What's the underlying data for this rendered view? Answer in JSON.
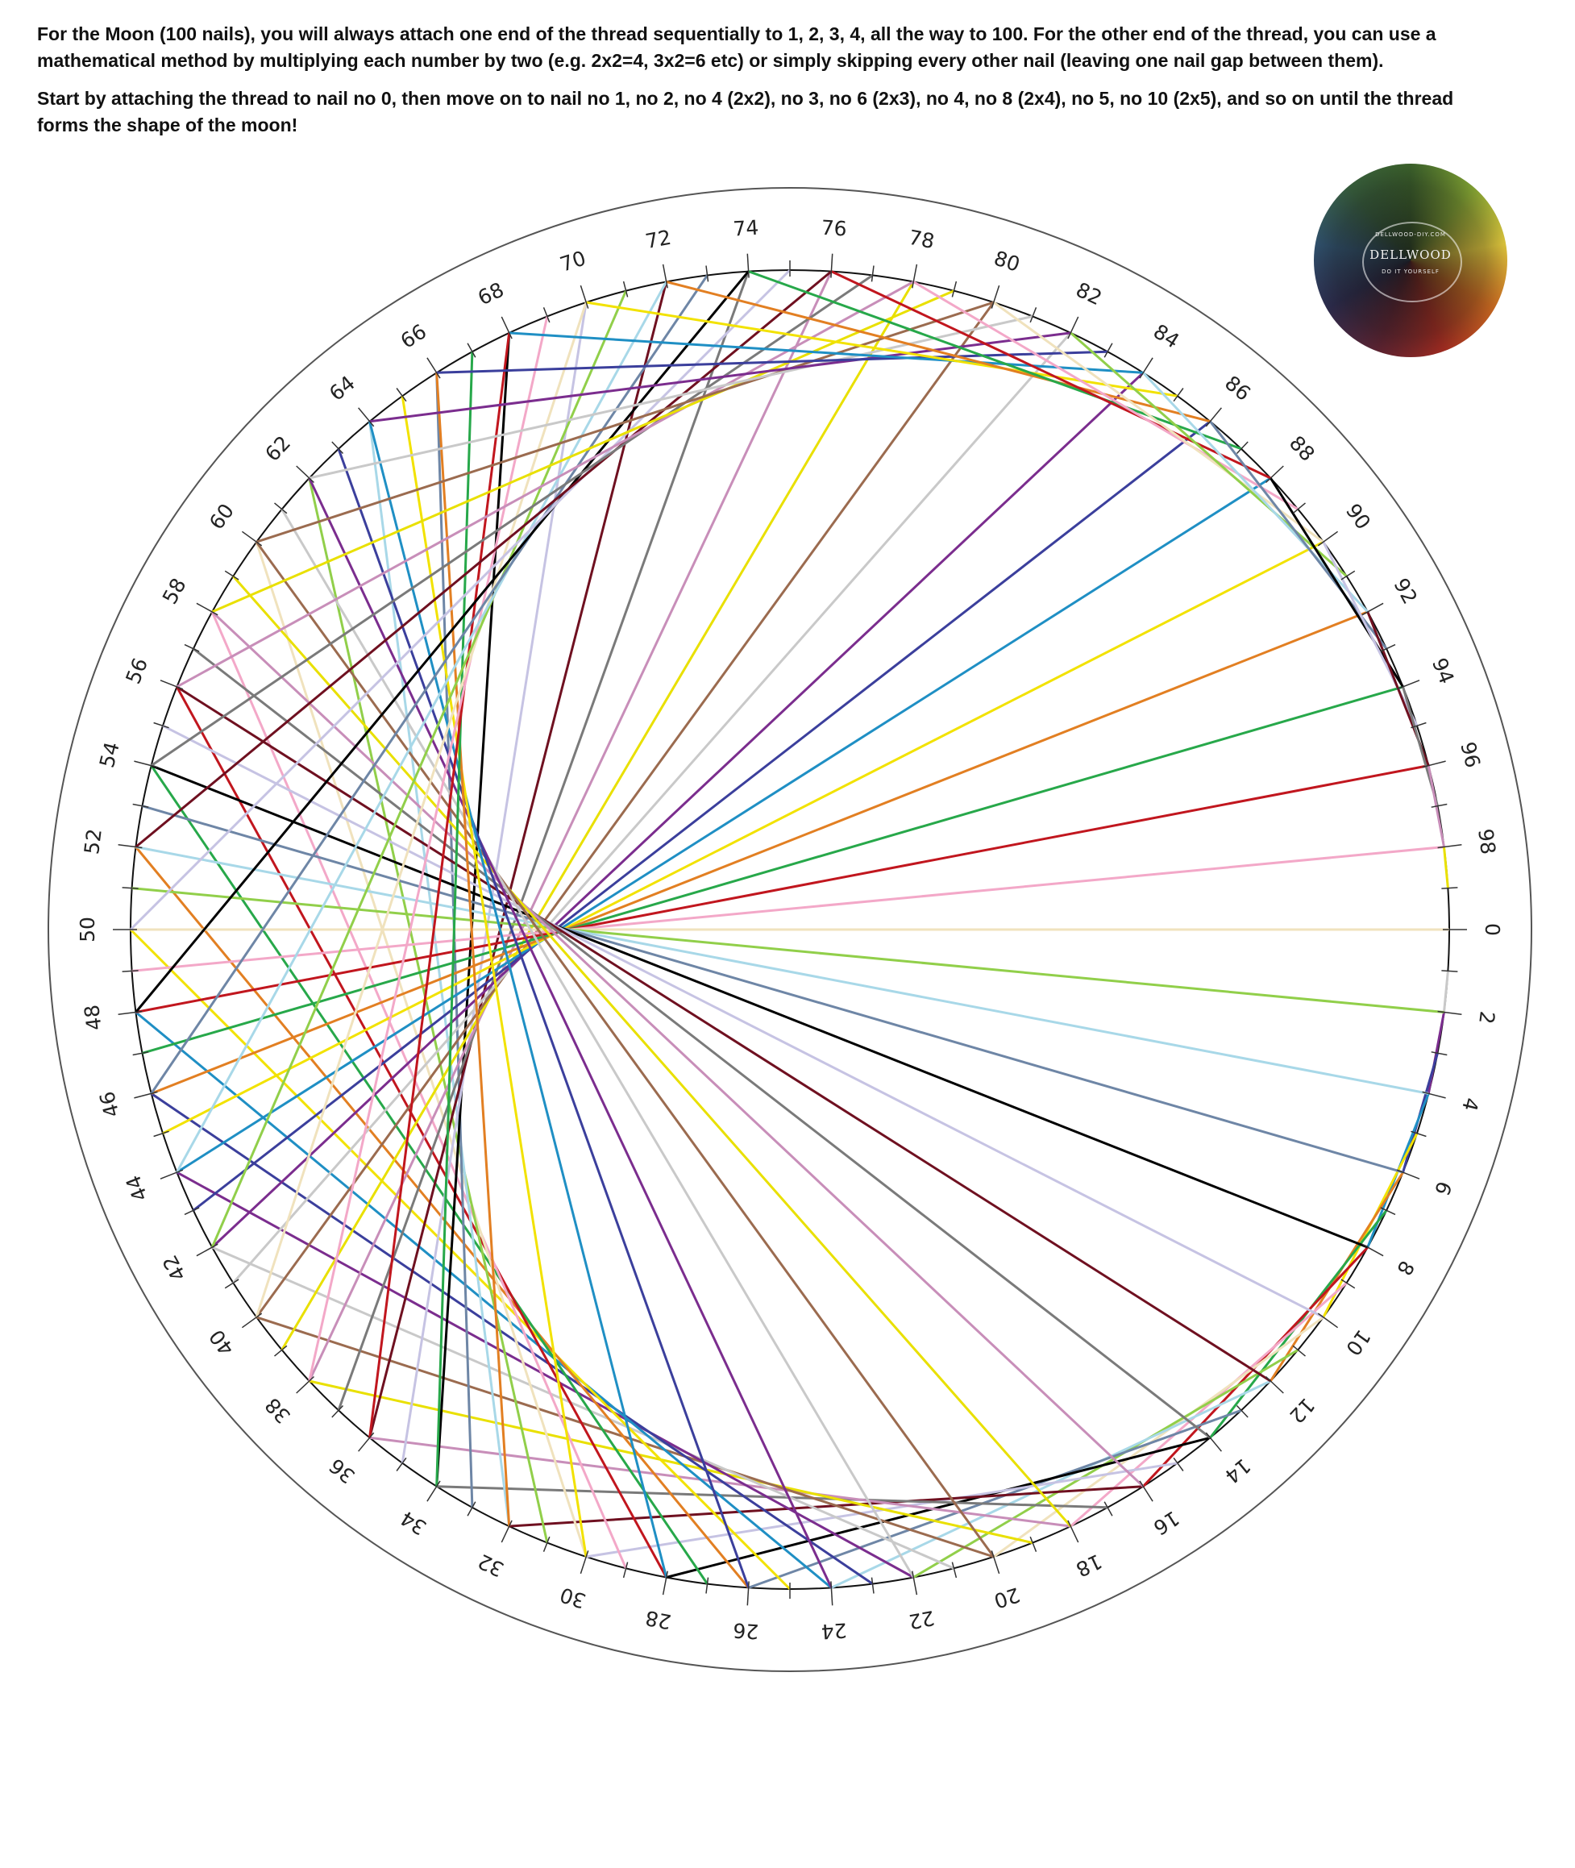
{
  "instructions": {
    "paragraph1": "For the Moon (100 nails), you will always attach one end of the thread sequentially to 1, 2, 3, 4, all the way to 100. For the other end of the thread, you can use a mathematical method by multiplying each number by two (e.g. 2x2=4, 3x2=6 etc) or simply skipping every other nail (leaving one nail gap between them).",
    "paragraph2": "Start by attaching the thread to nail no 0, then move on to nail no 1, no 2, no 4 (2x2),  no 3,  no 6 (2x3), no 4,  no 8 (2x4), no 5, no 10 (2x5), and so on until the thread forms the shape of the moon!"
  },
  "logo": {
    "name": "DELLWOOD",
    "url": "DELLWOOD-DIY.COM",
    "tagline": "DO IT YOURSELF"
  },
  "board": {
    "nail_count": 100,
    "multiplier": 2,
    "labels": [
      "0",
      "2",
      "4",
      "6",
      "8",
      "10",
      "12",
      "14",
      "16",
      "18",
      "20",
      "22",
      "24",
      "26",
      "28",
      "30",
      "32",
      "34",
      "36",
      "38",
      "40",
      "42",
      "44",
      "46",
      "48",
      "50",
      "52",
      "54",
      "56",
      "58",
      "60",
      "62",
      "64",
      "66",
      "68",
      "70",
      "72",
      "74",
      "76",
      "78",
      "80",
      "82",
      "84",
      "86",
      "88",
      "90",
      "92",
      "94",
      "96",
      "98"
    ],
    "thread_colors": [
      "#9b6b4f",
      "#c9c9c9",
      "#7b2d8e",
      "#3b3f9c",
      "#1f8fc4",
      "#f2e200",
      "#e27f22",
      "#27a84a",
      "#c1161e",
      "#f3a8c8",
      "#f0e2bd",
      "#91cf4a",
      "#a8d8e8",
      "#6e86a6",
      "#000000",
      "#c6c3e3",
      "#6f1020",
      "#7a7a7a",
      "#c88eb9",
      "#e9e000"
    ]
  }
}
